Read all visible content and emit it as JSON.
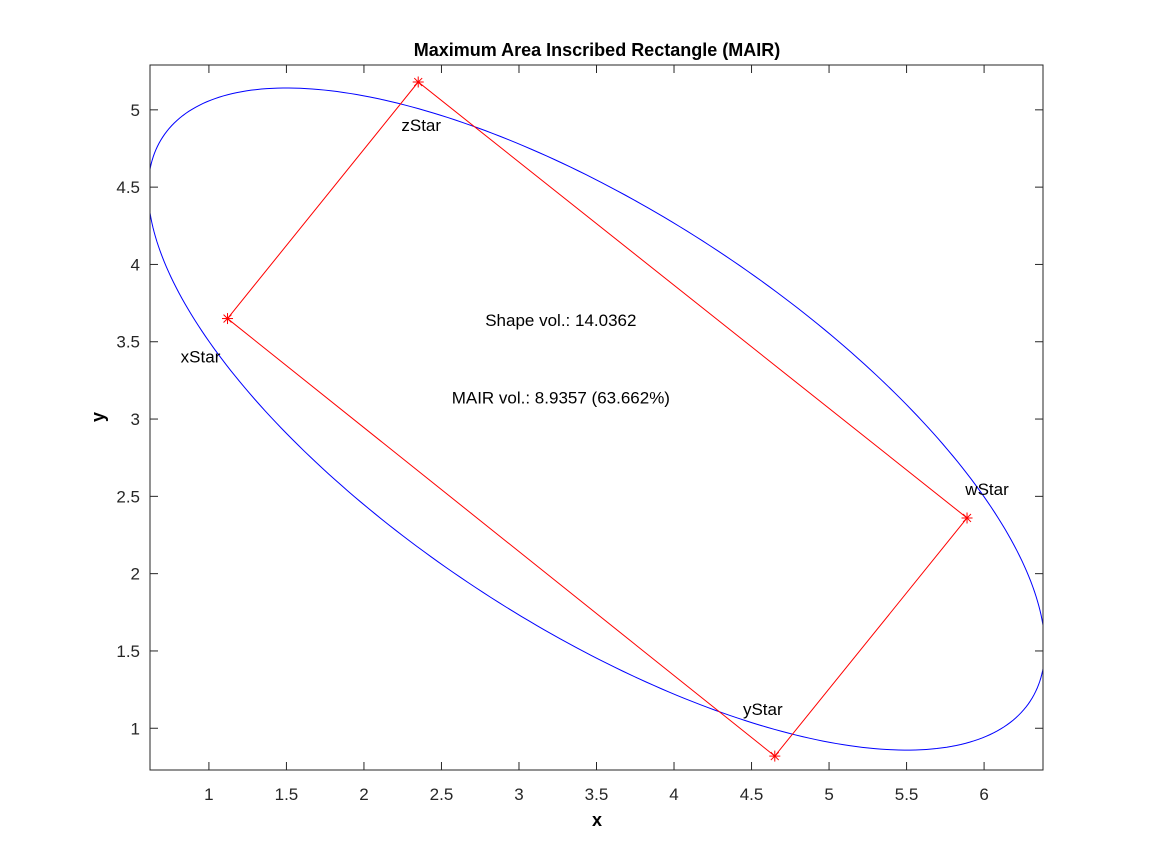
{
  "chart_data": {
    "type": "line",
    "title": "Maximum Area Inscribed Rectangle (MAIR)",
    "xlabel": "x",
    "ylabel": "y",
    "xlim": [
      0.62,
      6.38
    ],
    "ylim": [
      0.73,
      5.29
    ],
    "xticks": [
      1,
      1.5,
      2,
      2.5,
      3,
      3.5,
      4,
      4.5,
      5,
      5.5,
      6
    ],
    "xtick_labels": [
      "1",
      "1.5",
      "2",
      "2.5",
      "3",
      "3.5",
      "4",
      "4.5",
      "5",
      "5.5",
      "6"
    ],
    "yticks": [
      1,
      1.5,
      2,
      2.5,
      3,
      3.5,
      4,
      4.5,
      5
    ],
    "ytick_labels": [
      "1",
      "1.5",
      "2",
      "2.5",
      "3",
      "3.5",
      "4",
      "4.5",
      "5"
    ],
    "grid": false,
    "colors": {
      "ellipse": "#0000ff",
      "rectangle": "#ff0000",
      "axes": "#262626"
    },
    "ellipse": {
      "center": [
        3.5,
        3.0
      ],
      "semi_axes": [
        3.34,
        1.339
      ],
      "rotation_deg": -33.1
    },
    "points": [
      {
        "name": "xStar",
        "x": 1.12,
        "y": 3.65,
        "label": "xStar"
      },
      {
        "name": "zStar",
        "x": 2.35,
        "y": 5.18,
        "label": "zStar"
      },
      {
        "name": "wStar",
        "x": 5.89,
        "y": 2.36,
        "label": "wStar"
      },
      {
        "name": "yStar",
        "x": 4.65,
        "y": 0.82,
        "label": "yStar"
      }
    ],
    "rectangle_order": [
      "xStar",
      "zStar",
      "wStar",
      "yStar"
    ],
    "annotations": [
      {
        "text": "Shape vol.: 14.0362",
        "x": 3.27,
        "y": 3.64
      },
      {
        "text": "MAIR vol.: 8.9357 (63.662%)",
        "x": 3.27,
        "y": 3.14
      }
    ]
  }
}
